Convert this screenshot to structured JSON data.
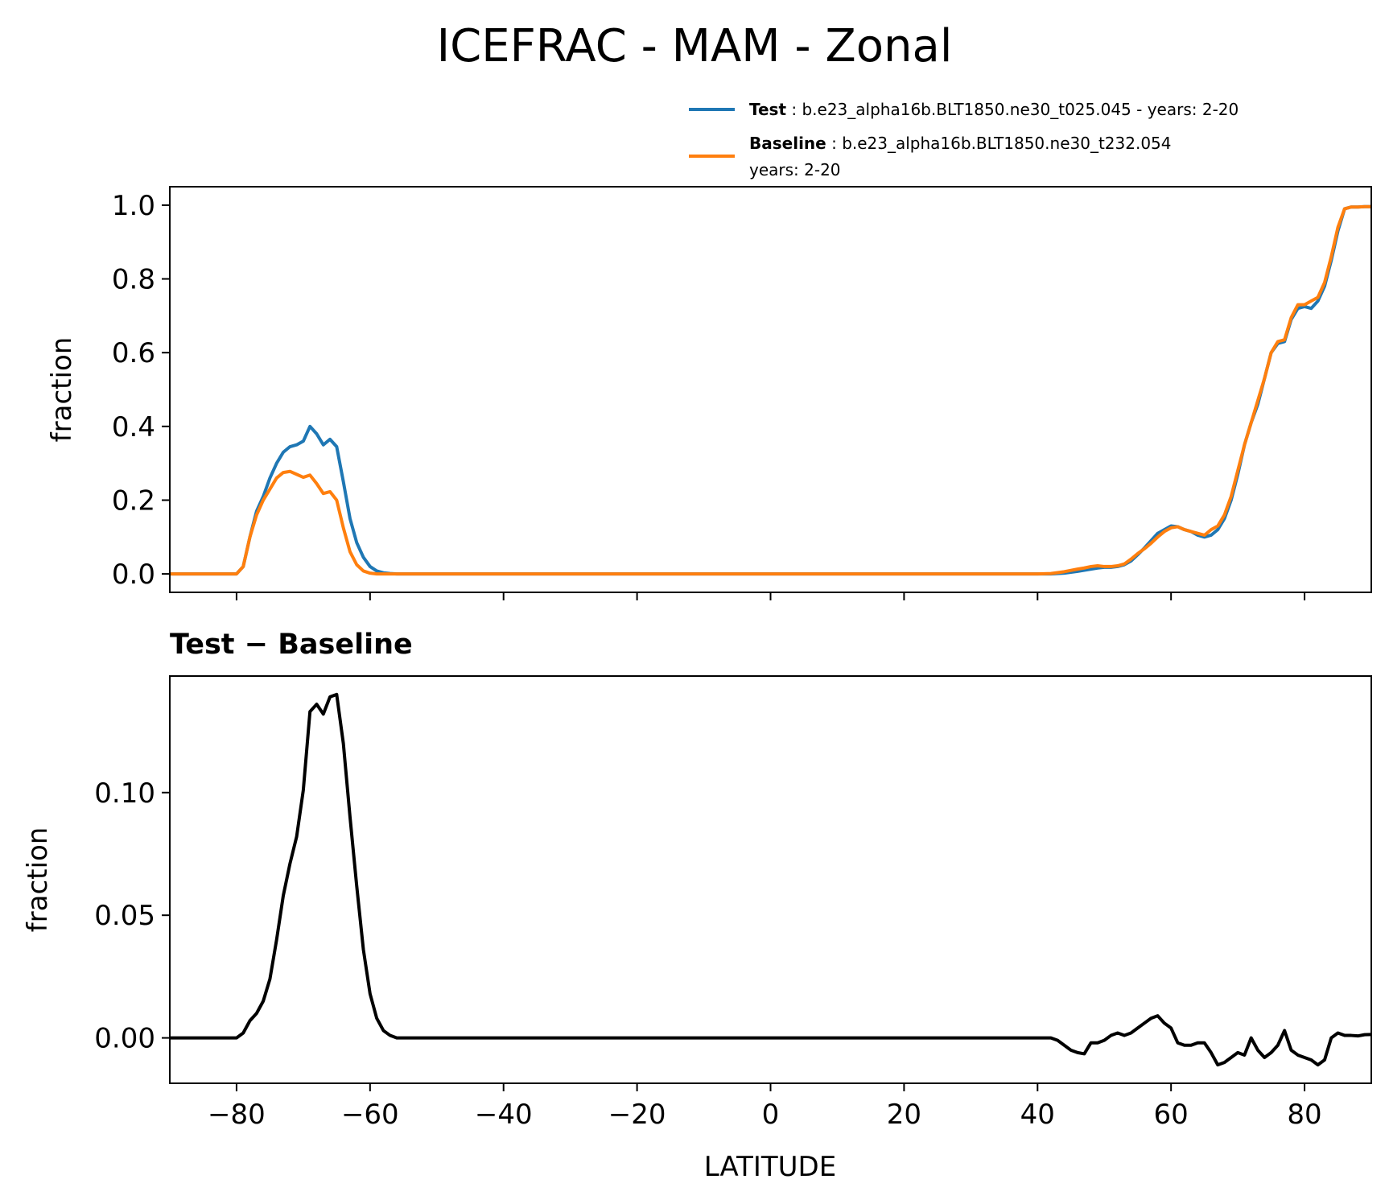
{
  "figure": {
    "title": "ICEFRAC - MAM - Zonal"
  },
  "legend": {
    "test": {
      "name": "Test",
      "sep": " : ",
      "text": "b.e23_alpha16b.BLT1850.ne30_t025.045 - years: 2-20",
      "color": "#1f77b4"
    },
    "baseline": {
      "name": "Baseline",
      "sep": " : ",
      "text": "b.e23_alpha16b.BLT1850.ne30_t232.054",
      "text2": "years: 2-20",
      "color": "#ff7f0e"
    }
  },
  "chart_data": [
    {
      "type": "line",
      "title": "",
      "xlabel": "",
      "ylabel": "fraction",
      "xlim": [
        -90,
        90
      ],
      "ylim": [
        -0.05,
        1.05
      ],
      "yticks": [
        0.0,
        0.2,
        0.4,
        0.6,
        0.8,
        1.0
      ],
      "ytick_labels": [
        "0.0",
        "0.2",
        "0.4",
        "0.6",
        "0.8",
        "1.0"
      ],
      "xticks": [
        -80,
        -60,
        -40,
        -20,
        0,
        20,
        40,
        60,
        80
      ],
      "legend": "top-right, above axes",
      "series": [
        {
          "name": "Test",
          "color": "#1f77b4",
          "x": [
            -90,
            -80,
            -79,
            -78,
            -77,
            -76,
            -75,
            -74,
            -73,
            -72,
            -71,
            -70,
            -69,
            -68,
            -67,
            -66,
            -65,
            -64,
            -63,
            -62,
            -61,
            -60,
            -59,
            -58,
            -57,
            -56,
            -50,
            -20,
            0,
            20,
            40,
            42,
            44,
            46,
            47,
            48,
            49,
            50,
            51,
            52,
            53,
            54,
            55,
            56,
            57,
            58,
            59,
            60,
            61,
            62,
            63,
            64,
            65,
            66,
            67,
            68,
            69,
            70,
            71,
            72,
            73,
            74,
            75,
            76,
            77,
            78,
            79,
            80,
            81,
            82,
            83,
            84,
            85,
            86,
            87,
            88,
            89,
            90
          ],
          "y": [
            0.0,
            0.0,
            0.02,
            0.1,
            0.17,
            0.21,
            0.26,
            0.3,
            0.33,
            0.345,
            0.35,
            0.36,
            0.4,
            0.38,
            0.35,
            0.365,
            0.345,
            0.25,
            0.15,
            0.085,
            0.045,
            0.02,
            0.008,
            0.003,
            0.001,
            0.0,
            0.0,
            0.0,
            0.0,
            0.0,
            0.0,
            0.0,
            0.002,
            0.007,
            0.01,
            0.013,
            0.016,
            0.018,
            0.018,
            0.02,
            0.025,
            0.035,
            0.052,
            0.07,
            0.09,
            0.11,
            0.12,
            0.13,
            0.128,
            0.12,
            0.115,
            0.105,
            0.1,
            0.105,
            0.12,
            0.15,
            0.2,
            0.27,
            0.35,
            0.41,
            0.46,
            0.53,
            0.6,
            0.625,
            0.63,
            0.69,
            0.72,
            0.725,
            0.72,
            0.74,
            0.78,
            0.85,
            0.93,
            0.99,
            0.995,
            0.995,
            0.996,
            0.996
          ]
        },
        {
          "name": "Baseline",
          "color": "#ff7f0e",
          "x": [
            -90,
            -80,
            -79,
            -78,
            -77,
            -76,
            -75,
            -74,
            -73,
            -72,
            -71,
            -70,
            -69,
            -68,
            -67,
            -66,
            -65,
            -64,
            -63,
            -62,
            -61,
            -60,
            -59,
            -58,
            -57,
            -56,
            -50,
            -20,
            0,
            20,
            40,
            42,
            44,
            46,
            47,
            48,
            49,
            50,
            51,
            52,
            53,
            54,
            55,
            56,
            57,
            58,
            59,
            60,
            61,
            62,
            63,
            64,
            65,
            66,
            67,
            68,
            69,
            70,
            71,
            72,
            73,
            74,
            75,
            76,
            77,
            78,
            79,
            80,
            81,
            82,
            83,
            84,
            85,
            86,
            87,
            88,
            89,
            90
          ],
          "y": [
            0.0,
            0.0,
            0.02,
            0.1,
            0.16,
            0.2,
            0.23,
            0.26,
            0.275,
            0.278,
            0.27,
            0.262,
            0.268,
            0.245,
            0.218,
            0.223,
            0.2,
            0.125,
            0.06,
            0.025,
            0.008,
            0.002,
            0.0,
            0.0,
            0.0,
            0.0,
            0.0,
            0.0,
            0.0,
            0.0,
            0.0,
            0.001,
            0.006,
            0.013,
            0.016,
            0.02,
            0.022,
            0.02,
            0.02,
            0.022,
            0.027,
            0.04,
            0.055,
            0.068,
            0.083,
            0.1,
            0.115,
            0.125,
            0.128,
            0.12,
            0.115,
            0.11,
            0.105,
            0.12,
            0.13,
            0.16,
            0.21,
            0.28,
            0.35,
            0.41,
            0.47,
            0.53,
            0.6,
            0.63,
            0.635,
            0.695,
            0.73,
            0.73,
            0.74,
            0.75,
            0.79,
            0.86,
            0.94,
            0.99,
            0.995,
            0.995,
            0.996,
            0.996
          ]
        }
      ]
    },
    {
      "type": "line",
      "title": "Test − Baseline",
      "xlabel": "LATITUDE",
      "ylabel": "fraction",
      "xlim": [
        -90,
        90
      ],
      "ylim": [
        -0.0185,
        0.1475
      ],
      "yticks": [
        0.0,
        0.05,
        0.1
      ],
      "ytick_labels": [
        "0.00",
        "0.05",
        "0.10"
      ],
      "xticks": [
        -80,
        -60,
        -40,
        -20,
        0,
        20,
        40,
        60,
        80
      ],
      "xtick_labels": [
        "−80",
        "−60",
        "−40",
        "−20",
        "0",
        "20",
        "40",
        "60",
        "80"
      ],
      "series": [
        {
          "name": "Test − Baseline",
          "color": "#000000",
          "x": [
            -90,
            -80,
            -79,
            -78,
            -77,
            -76,
            -75,
            -74,
            -73,
            -72,
            -71,
            -70,
            -69,
            -68,
            -67,
            -66,
            -65,
            -64,
            -63,
            -62,
            -61,
            -60,
            -59,
            -58,
            -57,
            -56,
            -50,
            -20,
            0,
            20,
            40,
            41,
            42,
            43,
            44,
            45,
            46,
            47,
            48,
            49,
            50,
            51,
            52,
            53,
            54,
            55,
            56,
            57,
            58,
            59,
            60,
            61,
            62,
            63,
            64,
            65,
            66,
            67,
            68,
            69,
            70,
            71,
            72,
            73,
            74,
            75,
            76,
            77,
            78,
            79,
            80,
            81,
            82,
            83,
            84,
            85,
            86,
            87,
            88,
            89,
            90
          ],
          "y": [
            0.0,
            0.0,
            0.002,
            0.007,
            0.01,
            0.015,
            0.024,
            0.04,
            0.058,
            0.071,
            0.082,
            0.101,
            0.133,
            0.136,
            0.132,
            0.139,
            0.14,
            0.12,
            0.09,
            0.062,
            0.036,
            0.018,
            0.008,
            0.003,
            0.001,
            0.0,
            0.0,
            0.0,
            0.0,
            0.0,
            0.0,
            0.0,
            0.0,
            -0.001,
            -0.003,
            -0.005,
            -0.006,
            -0.0065,
            -0.002,
            -0.002,
            -0.001,
            0.001,
            0.002,
            0.001,
            0.002,
            0.004,
            0.006,
            0.008,
            0.009,
            0.006,
            0.004,
            -0.002,
            -0.003,
            -0.003,
            -0.002,
            -0.002,
            -0.006,
            -0.011,
            -0.01,
            -0.008,
            -0.006,
            -0.007,
            0.0,
            -0.005,
            -0.008,
            -0.006,
            -0.003,
            0.003,
            -0.005,
            -0.007,
            -0.008,
            -0.009,
            -0.011,
            -0.009,
            0.0,
            0.002,
            0.001,
            0.001,
            0.0008,
            0.0013,
            0.0014
          ]
        }
      ]
    }
  ]
}
